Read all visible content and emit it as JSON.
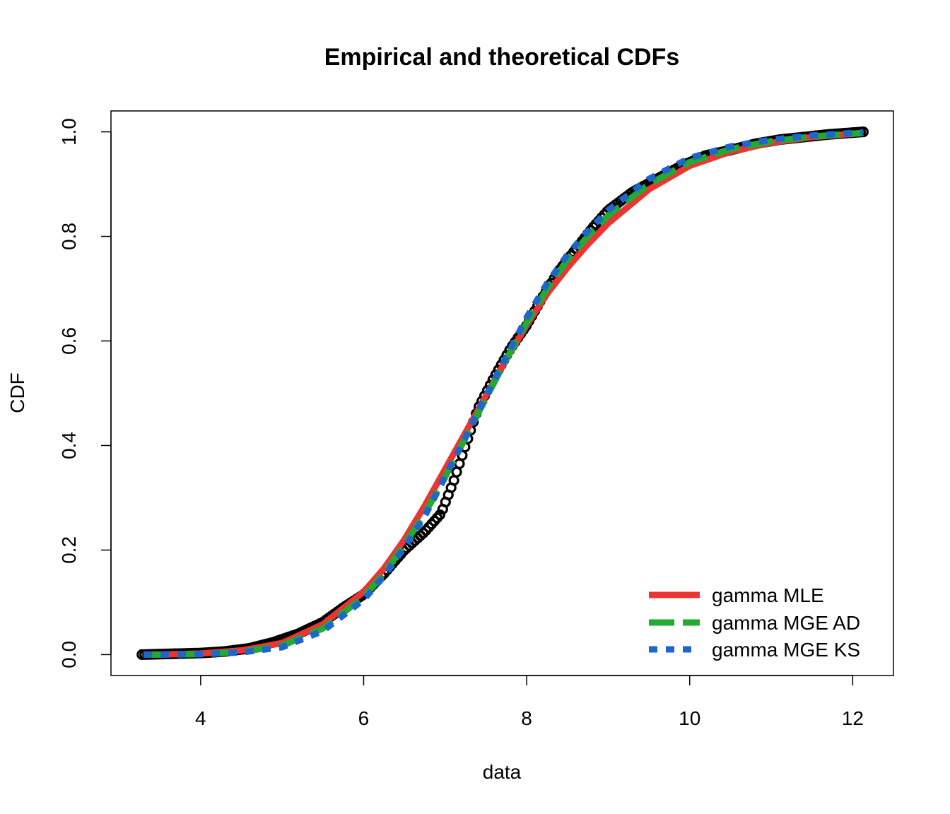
{
  "chart_data": {
    "type": "line",
    "title": "Empirical and theoretical CDFs",
    "xlabel": "data",
    "ylabel": "CDF",
    "xlim": [
      2.9,
      12.5
    ],
    "ylim": [
      -0.04,
      1.04
    ],
    "x_ticks": [
      4,
      6,
      8,
      10,
      12
    ],
    "y_ticks": [
      0.0,
      0.2,
      0.4,
      0.6,
      0.8,
      1.0
    ],
    "x_tick_labels": [
      "4",
      "6",
      "8",
      "10",
      "12"
    ],
    "y_tick_labels": [
      "0.0",
      "0.2",
      "0.4",
      "0.6",
      "0.8",
      "1.0"
    ],
    "grid": false,
    "legend_position": "bottom-right",
    "empirical": {
      "name": "empirical",
      "color": "#000000",
      "x": [
        3.28,
        4.0,
        4.3,
        4.6,
        4.9,
        5.2,
        5.5,
        5.75,
        6.0,
        6.25,
        6.5,
        6.75,
        6.95,
        7.1,
        7.25,
        7.4,
        7.6,
        7.8,
        8.0,
        8.2,
        8.4,
        8.6,
        8.8,
        9.0,
        9.3,
        9.6,
        9.9,
        10.2,
        10.5,
        10.8,
        11.1,
        11.4,
        11.7,
        12.13
      ],
      "y": [
        0.0,
        0.003,
        0.006,
        0.012,
        0.024,
        0.04,
        0.062,
        0.09,
        0.115,
        0.155,
        0.2,
        0.235,
        0.27,
        0.33,
        0.4,
        0.47,
        0.53,
        0.585,
        0.63,
        0.685,
        0.735,
        0.775,
        0.815,
        0.85,
        0.885,
        0.91,
        0.935,
        0.955,
        0.965,
        0.977,
        0.985,
        0.99,
        0.995,
        1.0
      ]
    },
    "series": [
      {
        "name": "gamma MLE",
        "color": "#ee3333",
        "dash": "solid",
        "x": [
          3.3,
          3.5,
          4.0,
          4.5,
          5.0,
          5.5,
          6.0,
          6.25,
          6.5,
          6.75,
          7.0,
          7.25,
          7.5,
          7.75,
          8.0,
          8.25,
          8.5,
          8.75,
          9.0,
          9.5,
          10.0,
          10.5,
          11.0,
          11.5,
          12.13
        ],
        "y": [
          0.0,
          0.0,
          0.002,
          0.008,
          0.022,
          0.058,
          0.12,
          0.165,
          0.22,
          0.285,
          0.355,
          0.425,
          0.495,
          0.565,
          0.63,
          0.69,
          0.74,
          0.785,
          0.825,
          0.89,
          0.935,
          0.962,
          0.979,
          0.99,
          0.998
        ]
      },
      {
        "name": "gamma MGE AD",
        "color": "#22aa33",
        "dash": "long-dash",
        "x": [
          3.3,
          3.5,
          4.0,
          4.5,
          5.0,
          5.5,
          6.0,
          6.25,
          6.5,
          6.75,
          7.0,
          7.25,
          7.5,
          7.75,
          8.0,
          8.25,
          8.5,
          8.75,
          9.0,
          9.5,
          10.0,
          10.5,
          11.0,
          11.5,
          12.13
        ],
        "y": [
          0.0,
          0.0,
          0.001,
          0.005,
          0.017,
          0.05,
          0.11,
          0.155,
          0.21,
          0.27,
          0.34,
          0.415,
          0.49,
          0.565,
          0.635,
          0.7,
          0.755,
          0.8,
          0.84,
          0.9,
          0.942,
          0.967,
          0.982,
          0.991,
          0.998
        ]
      },
      {
        "name": "gamma MGE KS",
        "color": "#1f66cc",
        "dash": "dotted",
        "x": [
          3.3,
          3.5,
          4.0,
          4.5,
          5.0,
          5.5,
          6.0,
          6.25,
          6.5,
          6.75,
          7.0,
          7.25,
          7.5,
          7.75,
          8.0,
          8.25,
          8.5,
          8.75,
          9.0,
          9.5,
          10.0,
          10.5,
          11.0,
          11.5,
          12.13
        ],
        "y": [
          0.0,
          0.0,
          0.001,
          0.004,
          0.014,
          0.045,
          0.105,
          0.15,
          0.205,
          0.265,
          0.34,
          0.415,
          0.495,
          0.57,
          0.645,
          0.71,
          0.765,
          0.81,
          0.85,
          0.91,
          0.95,
          0.972,
          0.985,
          0.993,
          0.999
        ]
      }
    ],
    "legend": [
      "gamma MLE",
      "gamma MGE AD",
      "gamma MGE KS"
    ]
  }
}
